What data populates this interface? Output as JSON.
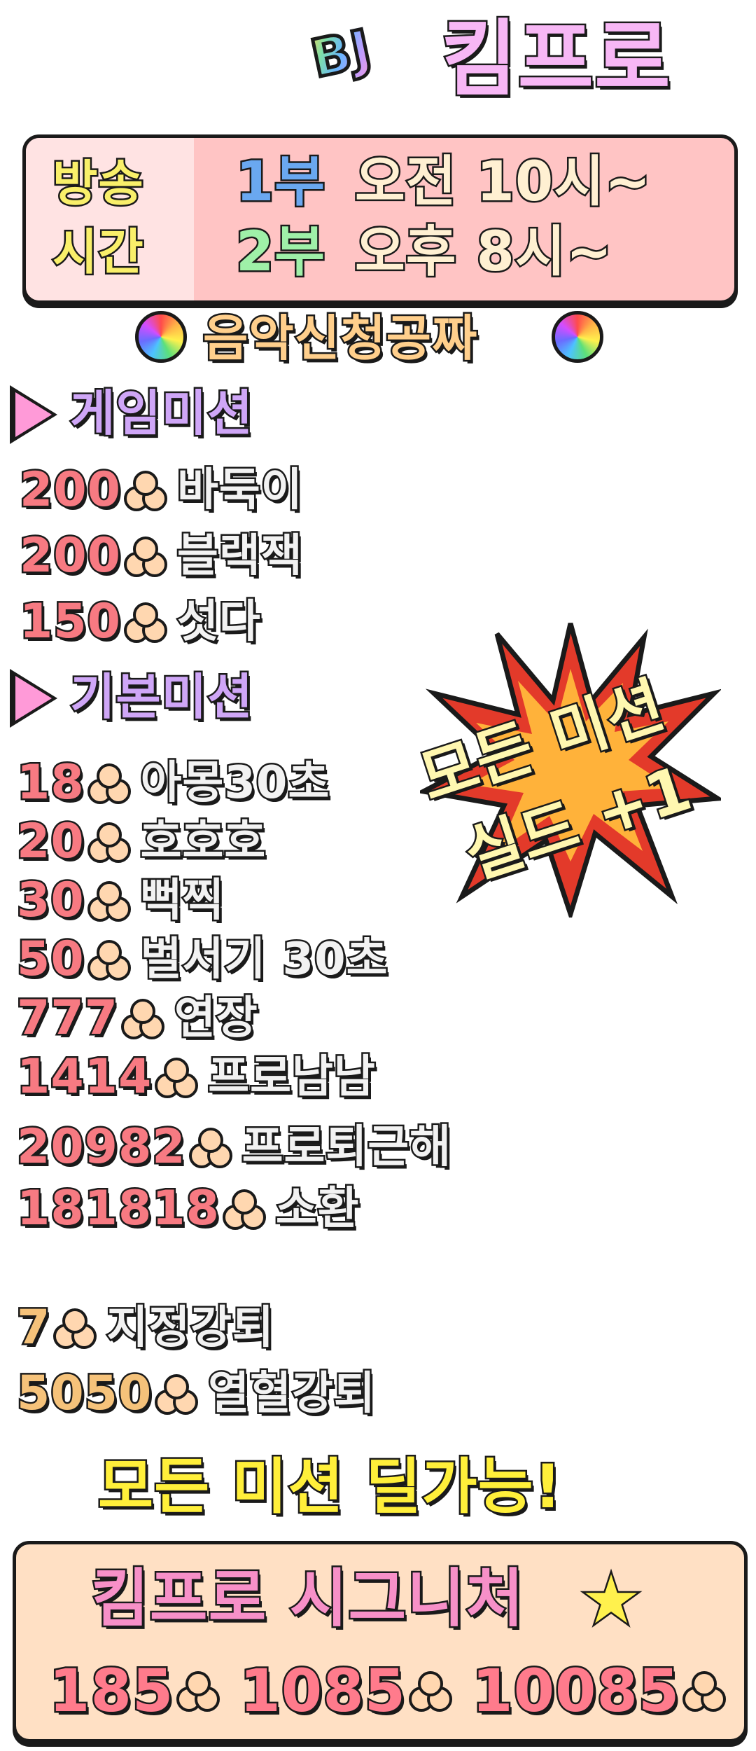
{
  "header": {
    "prefix": "BJ",
    "name": "킴프로"
  },
  "broadcast": {
    "label_line1": "방송",
    "label_line2": "시간",
    "part1": "1부",
    "time1": "오전 10시~",
    "part2": "2부",
    "time2": "오후 8시~"
  },
  "music": {
    "text": "음악신청공짜"
  },
  "game_missions": {
    "title": "게임미션",
    "items": [
      {
        "amount": "200",
        "label": "바둑이"
      },
      {
        "amount": "200",
        "label": "블랙잭"
      },
      {
        "amount": "150",
        "label": "섯다"
      }
    ]
  },
  "basic_missions": {
    "title": "기본미션",
    "items": [
      {
        "amount": "18",
        "label": "아몽30초"
      },
      {
        "amount": "20",
        "label": "호호호"
      },
      {
        "amount": "30",
        "label": "뻑찍"
      },
      {
        "amount": "50",
        "label": "벌서기 30초"
      },
      {
        "amount": "777",
        "label": "연장"
      },
      {
        "amount": "1414",
        "label": "프로남남"
      },
      {
        "amount": "20982",
        "label": "프로퇴근해"
      },
      {
        "amount": "181818",
        "label": "소환"
      }
    ]
  },
  "kick_missions": {
    "items": [
      {
        "amount": "7",
        "label": "지정강퇴"
      },
      {
        "amount": "5050",
        "label": "열혈강퇴"
      }
    ]
  },
  "burst": {
    "line1": "모든 미션",
    "line2": "실드 +1"
  },
  "all_missions": {
    "text": "모든 미션 딜가능!"
  },
  "signature": {
    "title": "킴프로 시그니처",
    "amounts": [
      "185",
      "1085",
      "10085"
    ]
  },
  "colors": {
    "name": "#f7b7f5",
    "amount": "#f77a82",
    "kick_amount": "#f5c27a",
    "section": "#cfa6f7",
    "part1": "#6aa8f0",
    "part2": "#9ff0a8"
  }
}
